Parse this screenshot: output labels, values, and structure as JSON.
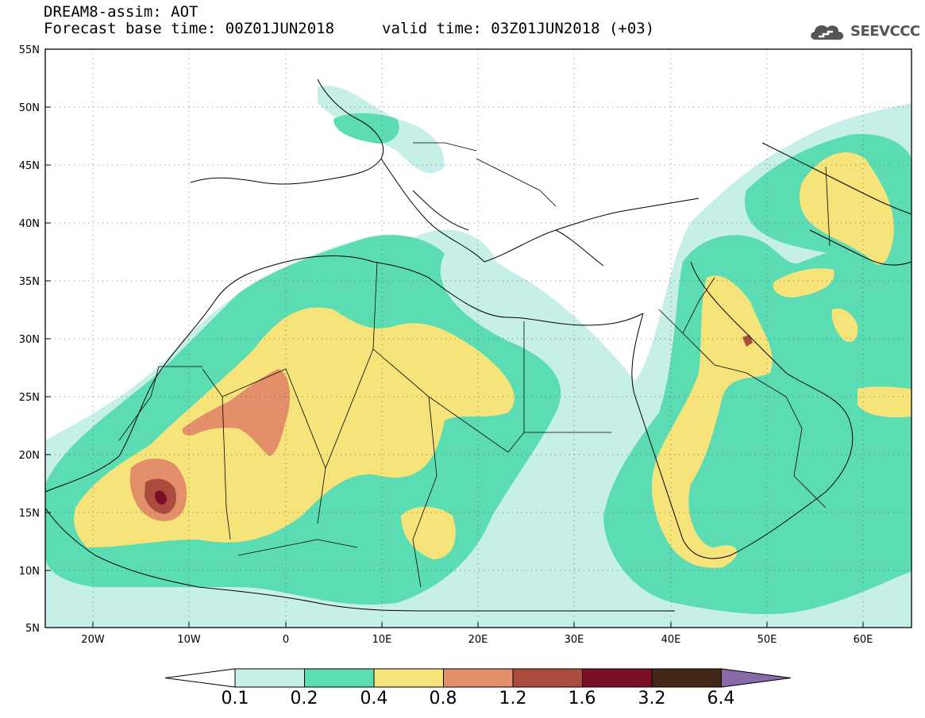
{
  "header": {
    "title_line1": "DREAM8-assim: AOT",
    "title_line2_left": "Forecast base time: 00Z01JUN2018",
    "title_line2_right": "valid time: 03Z01JUN2018 (+03)",
    "logo_text": "SEEVCCC"
  },
  "map": {
    "lat_labels": [
      "55N",
      "50N",
      "45N",
      "40N",
      "35N",
      "30N",
      "25N",
      "20N",
      "15N",
      "10N",
      "5N"
    ],
    "lon_labels": [
      "20W",
      "10W",
      "0",
      "10E",
      "20E",
      "30E",
      "40E",
      "50E",
      "60E"
    ],
    "lat_range": [
      5,
      55
    ],
    "lon_range": [
      -25,
      65
    ]
  },
  "colorbar": {
    "labels": [
      "0.1",
      "0.2",
      "0.4",
      "0.8",
      "1.2",
      "1.6",
      "3.2",
      "6.4"
    ],
    "colors": [
      "#ffffff",
      "#c6efe8",
      "#5cdcb2",
      "#f6e37a",
      "#e3906a",
      "#ab4c3e",
      "#7c0f28",
      "#43281a",
      "#8a6aa6"
    ]
  }
}
